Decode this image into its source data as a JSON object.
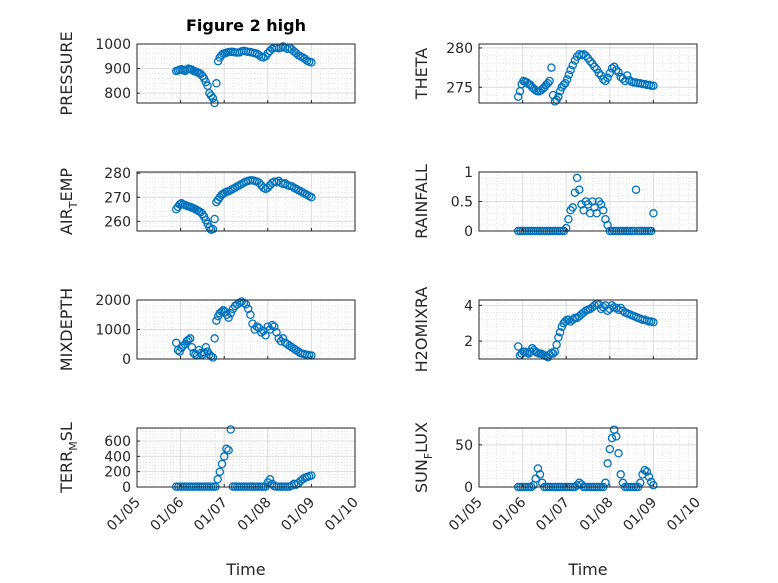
{
  "chart_data": [
    {
      "type": "scatter",
      "title": "Figure 2 high",
      "ylabel_main": "PRESSURE",
      "ylabel_sub": "",
      "ylabel_tail": "",
      "ylim": [
        760,
        1000
      ],
      "yticks": [
        800,
        900,
        1000
      ],
      "xticks": [
        "01/05",
        "01/06",
        "01/07",
        "01/08",
        "01/09",
        "01/10"
      ],
      "show_xtick_labels": false,
      "xlabel": "",
      "color": "#0072BD",
      "grid": true,
      "x": [
        0.9,
        0.94,
        0.98,
        1.02,
        1.06,
        1.1,
        1.14,
        1.18,
        1.22,
        1.26,
        1.3,
        1.34,
        1.38,
        1.42,
        1.46,
        1.5,
        1.54,
        1.58,
        1.62,
        1.66,
        1.7,
        1.74,
        1.78,
        1.82,
        1.86,
        1.9,
        1.94,
        1.98,
        2.02,
        2.06,
        2.1,
        2.15,
        2.2,
        2.25,
        2.3,
        2.35,
        2.4,
        2.45,
        2.5,
        2.55,
        2.6,
        2.65,
        2.7,
        2.75,
        2.8,
        2.85,
        2.9,
        2.95,
        3.0,
        3.05,
        3.1,
        3.15,
        3.2,
        3.25,
        3.3,
        3.35,
        3.4,
        3.45,
        3.5,
        3.55,
        3.6,
        3.65,
        3.7,
        3.75,
        3.8,
        3.85,
        3.9,
        3.95,
        4.0
      ],
      "values": [
        890,
        892,
        895,
        897,
        893,
        890,
        895,
        900,
        898,
        895,
        890,
        888,
        885,
        882,
        878,
        870,
        860,
        845,
        830,
        800,
        790,
        780,
        760,
        840,
        930,
        945,
        955,
        960,
        962,
        965,
        967,
        968,
        968,
        966,
        965,
        966,
        970,
        972,
        970,
        968,
        967,
        965,
        962,
        960,
        955,
        948,
        945,
        950,
        962,
        972,
        980,
        985,
        985,
        983,
        985,
        990,
        985,
        980,
        985,
        978,
        970,
        963,
        955,
        950,
        945,
        940,
        932,
        928,
        925
      ]
    },
    {
      "type": "scatter",
      "ylabel_main": "THETA",
      "ylabel_sub": "",
      "ylabel_tail": "",
      "ylim": [
        273,
        280.5
      ],
      "yticks": [
        275,
        280
      ],
      "xticks": [
        "01/05",
        "01/06",
        "01/07",
        "01/08",
        "01/09",
        "01/10"
      ],
      "show_xtick_labels": false,
      "xlabel": "",
      "color": "#0072BD",
      "grid": true,
      "x": [
        0.9,
        0.94,
        0.98,
        1.02,
        1.06,
        1.1,
        1.14,
        1.18,
        1.22,
        1.26,
        1.3,
        1.34,
        1.38,
        1.42,
        1.46,
        1.5,
        1.54,
        1.58,
        1.62,
        1.66,
        1.7,
        1.74,
        1.78,
        1.82,
        1.86,
        1.9,
        1.94,
        1.98,
        2.02,
        2.06,
        2.1,
        2.15,
        2.2,
        2.25,
        2.3,
        2.35,
        2.4,
        2.45,
        2.5,
        2.55,
        2.6,
        2.65,
        2.7,
        2.75,
        2.8,
        2.85,
        2.9,
        2.95,
        3.0,
        3.05,
        3.1,
        3.15,
        3.2,
        3.25,
        3.3,
        3.35,
        3.4,
        3.45,
        3.5,
        3.55,
        3.6,
        3.65,
        3.7,
        3.75,
        3.8,
        3.85,
        3.9,
        3.95,
        4.0
      ],
      "values": [
        273.8,
        274.5,
        275.4,
        275.8,
        275.7,
        275.6,
        275.4,
        275.3,
        275.0,
        274.8,
        274.6,
        274.5,
        274.5,
        274.6,
        274.8,
        275.0,
        275.3,
        275.5,
        275.8,
        277.5,
        274.0,
        273.2,
        273.4,
        273.8,
        274.5,
        275.0,
        275.3,
        275.5,
        276.0,
        276.6,
        277.2,
        277.8,
        278.4,
        278.9,
        279.2,
        279.1,
        279.2,
        279.0,
        278.7,
        278.3,
        278.0,
        277.6,
        277.3,
        276.8,
        276.5,
        276.0,
        275.8,
        276.2,
        276.8,
        277.4,
        277.6,
        277.2,
        276.9,
        276.3,
        276.1,
        275.8,
        276.5,
        275.9,
        275.7,
        275.6,
        275.6,
        275.5,
        275.5,
        275.4,
        275.4,
        275.3,
        275.3,
        275.2,
        275.2
      ]
    },
    {
      "type": "scatter",
      "ylabel_main": "AIR",
      "ylabel_sub": "T",
      "ylabel_tail": "EMP",
      "ylim": [
        256,
        280.5
      ],
      "yticks": [
        260,
        270,
        280
      ],
      "xticks": [
        "01/05",
        "01/06",
        "01/07",
        "01/08",
        "01/09",
        "01/10"
      ],
      "show_xtick_labels": false,
      "xlabel": "",
      "color": "#0072BD",
      "grid": true,
      "x": [
        0.9,
        0.94,
        0.98,
        1.02,
        1.06,
        1.1,
        1.14,
        1.18,
        1.22,
        1.26,
        1.3,
        1.34,
        1.38,
        1.42,
        1.46,
        1.5,
        1.54,
        1.58,
        1.62,
        1.66,
        1.7,
        1.74,
        1.78,
        1.82,
        1.86,
        1.9,
        1.94,
        1.98,
        2.02,
        2.06,
        2.1,
        2.15,
        2.2,
        2.25,
        2.3,
        2.35,
        2.4,
        2.45,
        2.5,
        2.55,
        2.6,
        2.65,
        2.7,
        2.75,
        2.8,
        2.85,
        2.9,
        2.95,
        3.0,
        3.05,
        3.1,
        3.15,
        3.2,
        3.25,
        3.3,
        3.35,
        3.4,
        3.45,
        3.5,
        3.55,
        3.6,
        3.65,
        3.7,
        3.75,
        3.8,
        3.85,
        3.9,
        3.95,
        4.0
      ],
      "values": [
        265,
        266,
        267,
        267.5,
        267,
        266.8,
        266.5,
        266.2,
        266,
        265.7,
        265.4,
        265,
        264.6,
        264.2,
        263.8,
        263,
        262,
        260.5,
        259,
        257.5,
        256.5,
        256.8,
        261,
        268,
        269,
        270,
        271,
        271.5,
        272,
        272.3,
        272.5,
        273,
        273.5,
        274,
        274.5,
        275,
        275.5,
        276,
        276.5,
        276.8,
        277,
        277,
        276.8,
        276.5,
        276,
        275,
        274,
        273.5,
        274,
        275,
        276,
        276.5,
        276.2,
        276.8,
        276,
        275.5,
        275.8,
        275,
        274.8,
        274.5,
        274,
        273.5,
        273,
        272.5,
        272,
        271.5,
        271,
        270.5,
        270
      ]
    },
    {
      "type": "scatter",
      "ylabel_main": "RAINFALL",
      "ylabel_sub": "",
      "ylabel_tail": "",
      "ylim": [
        0,
        1
      ],
      "yticks": [
        0,
        0.5,
        1
      ],
      "xticks": [
        "01/05",
        "01/06",
        "01/07",
        "01/08",
        "01/09",
        "01/10"
      ],
      "show_xtick_labels": false,
      "xlabel": "",
      "color": "#0072BD",
      "grid": true,
      "x": [
        0.9,
        0.95,
        1.0,
        1.05,
        1.1,
        1.15,
        1.2,
        1.25,
        1.3,
        1.35,
        1.4,
        1.45,
        1.5,
        1.55,
        1.6,
        1.65,
        1.7,
        1.75,
        1.8,
        1.85,
        1.9,
        1.95,
        2.0,
        2.05,
        2.1,
        2.15,
        2.2,
        2.25,
        2.3,
        2.35,
        2.4,
        2.45,
        2.5,
        2.55,
        2.6,
        2.65,
        2.7,
        2.75,
        2.8,
        2.85,
        2.9,
        2.95,
        3.0,
        3.05,
        3.1,
        3.15,
        3.2,
        3.25,
        3.3,
        3.35,
        3.4,
        3.45,
        3.5,
        3.55,
        3.6,
        3.65,
        3.7,
        3.75,
        3.8,
        3.85,
        3.9,
        3.95,
        4.0
      ],
      "values": [
        0,
        0,
        0,
        0,
        0,
        0,
        0,
        0,
        0,
        0,
        0,
        0,
        0,
        0,
        0,
        0,
        0,
        0,
        0,
        0,
        0,
        0,
        0.05,
        0.2,
        0.35,
        0.4,
        0.65,
        0.9,
        0.7,
        0.45,
        0.35,
        0.5,
        0.45,
        0.3,
        0.5,
        0.4,
        0.3,
        0.5,
        0.45,
        0.35,
        0.2,
        0.1,
        0,
        0,
        0,
        0,
        0,
        0,
        0,
        0,
        0,
        0,
        0,
        0,
        0.7,
        0,
        0,
        0,
        0,
        0,
        0,
        0,
        0.3
      ]
    },
    {
      "type": "scatter",
      "ylabel_main": "MIXDEPTH",
      "ylabel_sub": "",
      "ylabel_tail": "",
      "ylim": [
        0,
        2000
      ],
      "yticks": [
        0,
        1000,
        2000
      ],
      "xticks": [
        "01/05",
        "01/06",
        "01/07",
        "01/08",
        "01/09",
        "01/10"
      ],
      "show_xtick_labels": false,
      "xlabel": "",
      "color": "#0072BD",
      "grid": true,
      "x": [
        0.9,
        0.94,
        0.98,
        1.02,
        1.06,
        1.1,
        1.14,
        1.18,
        1.22,
        1.26,
        1.3,
        1.34,
        1.38,
        1.42,
        1.46,
        1.5,
        1.54,
        1.58,
        1.62,
        1.66,
        1.7,
        1.74,
        1.78,
        1.82,
        1.86,
        1.9,
        1.94,
        1.98,
        2.02,
        2.06,
        2.1,
        2.15,
        2.2,
        2.25,
        2.3,
        2.35,
        2.4,
        2.45,
        2.5,
        2.55,
        2.6,
        2.65,
        2.7,
        2.75,
        2.8,
        2.85,
        2.9,
        2.95,
        3.0,
        3.05,
        3.1,
        3.15,
        3.2,
        3.25,
        3.3,
        3.35,
        3.4,
        3.45,
        3.5,
        3.55,
        3.6,
        3.65,
        3.7,
        3.75,
        3.8,
        3.85,
        3.9,
        3.95,
        4.0
      ],
      "values": [
        550,
        300,
        250,
        380,
        450,
        500,
        600,
        650,
        700,
        400,
        200,
        150,
        120,
        300,
        200,
        150,
        220,
        400,
        250,
        150,
        100,
        50,
        700,
        1300,
        1450,
        1550,
        1600,
        1650,
        1600,
        1500,
        1400,
        1550,
        1700,
        1800,
        1850,
        1900,
        1950,
        1900,
        1850,
        1700,
        1500,
        1200,
        1000,
        1100,
        1050,
        900,
        950,
        800,
        1100,
        1000,
        1150,
        1100,
        900,
        700,
        600,
        700,
        550,
        500,
        450,
        400,
        350,
        300,
        250,
        200,
        180,
        160,
        140,
        130,
        120
      ]
    },
    {
      "type": "scatter",
      "ylabel_main": "H2OMIXRA",
      "ylabel_sub": "",
      "ylabel_tail": "",
      "ylim": [
        1,
        4.3
      ],
      "yticks": [
        2,
        4
      ],
      "xticks": [
        "01/05",
        "01/06",
        "01/07",
        "01/08",
        "01/09",
        "01/10"
      ],
      "show_xtick_labels": false,
      "xlabel": "",
      "color": "#0072BD",
      "grid": true,
      "x": [
        0.9,
        0.94,
        0.98,
        1.02,
        1.06,
        1.1,
        1.14,
        1.18,
        1.22,
        1.26,
        1.3,
        1.34,
        1.38,
        1.42,
        1.46,
        1.5,
        1.54,
        1.58,
        1.62,
        1.66,
        1.7,
        1.74,
        1.78,
        1.82,
        1.86,
        1.9,
        1.94,
        1.98,
        2.02,
        2.06,
        2.1,
        2.15,
        2.2,
        2.25,
        2.3,
        2.35,
        2.4,
        2.45,
        2.5,
        2.55,
        2.6,
        2.65,
        2.7,
        2.75,
        2.8,
        2.85,
        2.9,
        2.95,
        3.0,
        3.05,
        3.1,
        3.15,
        3.2,
        3.25,
        3.3,
        3.35,
        3.4,
        3.45,
        3.5,
        3.55,
        3.6,
        3.65,
        3.7,
        3.75,
        3.8,
        3.85,
        3.9,
        3.95,
        4.0
      ],
      "values": [
        1.7,
        1.2,
        1.3,
        1.4,
        1.4,
        1.35,
        1.3,
        1.4,
        1.6,
        1.5,
        1.4,
        1.35,
        1.3,
        1.3,
        1.25,
        1.2,
        1.15,
        1.1,
        1.25,
        1.35,
        1.3,
        1.4,
        1.8,
        2.2,
        2.5,
        2.8,
        3.0,
        3.1,
        3.2,
        3.2,
        3.1,
        3.2,
        3.3,
        3.3,
        3.4,
        3.5,
        3.6,
        3.7,
        3.75,
        3.8,
        3.9,
        4.0,
        4.1,
        4.05,
        3.8,
        3.9,
        4.0,
        3.7,
        3.8,
        4.0,
        3.9,
        3.85,
        3.75,
        3.85,
        3.7,
        3.6,
        3.55,
        3.5,
        3.45,
        3.4,
        3.35,
        3.3,
        3.25,
        3.2,
        3.2,
        3.15,
        3.1,
        3.1,
        3.05
      ]
    },
    {
      "type": "scatter",
      "ylabel_main": "TERR",
      "ylabel_sub": "M",
      "ylabel_tail": "SL",
      "ylim": [
        0,
        770
      ],
      "yticks": [
        0,
        200,
        400,
        600
      ],
      "xticks": [
        "01/05",
        "01/06",
        "01/07",
        "01/08",
        "01/09",
        "01/10"
      ],
      "show_xtick_labels": true,
      "xlabel": "Time",
      "color": "#0072BD",
      "grid": true,
      "x": [
        0.9,
        0.95,
        1.0,
        1.05,
        1.1,
        1.15,
        1.2,
        1.25,
        1.3,
        1.35,
        1.4,
        1.45,
        1.5,
        1.55,
        1.6,
        1.65,
        1.7,
        1.75,
        1.8,
        1.85,
        1.9,
        1.95,
        2.0,
        2.05,
        2.1,
        2.15,
        2.2,
        2.25,
        2.3,
        2.35,
        2.4,
        2.45,
        2.5,
        2.55,
        2.6,
        2.65,
        2.7,
        2.75,
        2.8,
        2.85,
        2.9,
        2.95,
        3.0,
        3.05,
        3.1,
        3.15,
        3.2,
        3.25,
        3.3,
        3.35,
        3.4,
        3.45,
        3.5,
        3.55,
        3.6,
        3.65,
        3.7,
        3.75,
        3.8,
        3.85,
        3.9,
        3.95,
        4.0
      ],
      "values": [
        5,
        5,
        5,
        5,
        5,
        5,
        5,
        5,
        5,
        5,
        5,
        5,
        5,
        5,
        5,
        5,
        5,
        5,
        5,
        100,
        200,
        300,
        400,
        500,
        480,
        750,
        5,
        5,
        5,
        5,
        5,
        5,
        5,
        5,
        5,
        5,
        5,
        5,
        5,
        5,
        5,
        5,
        60,
        100,
        40,
        10,
        5,
        5,
        5,
        5,
        5,
        5,
        5,
        20,
        40,
        30,
        50,
        80,
        100,
        120,
        130,
        140,
        150
      ]
    },
    {
      "type": "scatter",
      "ylabel_main": "SUN",
      "ylabel_sub": "F",
      "ylabel_tail": "LUX",
      "ylim": [
        0,
        70
      ],
      "yticks": [
        0,
        50
      ],
      "xticks": [
        "01/05",
        "01/06",
        "01/07",
        "01/08",
        "01/09",
        "01/10"
      ],
      "show_xtick_labels": true,
      "xlabel": "Time",
      "color": "#0072BD",
      "grid": true,
      "x": [
        0.9,
        0.95,
        1.0,
        1.05,
        1.1,
        1.15,
        1.2,
        1.25,
        1.3,
        1.35,
        1.4,
        1.45,
        1.5,
        1.55,
        1.6,
        1.65,
        1.7,
        1.75,
        1.8,
        1.85,
        1.9,
        1.95,
        2.0,
        2.05,
        2.1,
        2.15,
        2.2,
        2.25,
        2.3,
        2.35,
        2.4,
        2.45,
        2.5,
        2.55,
        2.6,
        2.65,
        2.7,
        2.75,
        2.8,
        2.85,
        2.9,
        2.95,
        3.0,
        3.05,
        3.1,
        3.15,
        3.2,
        3.25,
        3.3,
        3.35,
        3.4,
        3.45,
        3.5,
        3.55,
        3.6,
        3.65,
        3.7,
        3.75,
        3.8,
        3.85,
        3.9,
        3.95,
        4.0
      ],
      "values": [
        0,
        0,
        0,
        0,
        0,
        0,
        0,
        2,
        10,
        22,
        15,
        5,
        0,
        0,
        0,
        0,
        0,
        0,
        0,
        0,
        0,
        0,
        0,
        0,
        0,
        0,
        0,
        2,
        5,
        3,
        0,
        0,
        0,
        0,
        0,
        0,
        0,
        0,
        0,
        0,
        5,
        28,
        45,
        58,
        68,
        60,
        40,
        15,
        5,
        0,
        0,
        0,
        0,
        0,
        0,
        0,
        5,
        15,
        20,
        18,
        12,
        6,
        2
      ]
    }
  ]
}
